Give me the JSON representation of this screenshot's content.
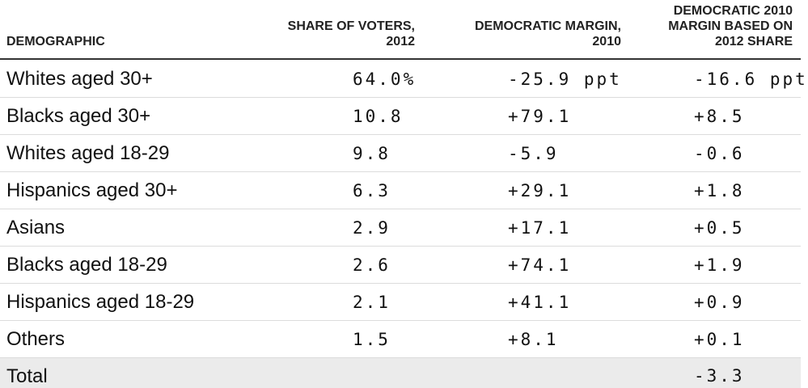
{
  "chart_data": {
    "type": "table",
    "columns": [
      "DEMOGRAPHIC",
      "SHARE OF VOTERS, 2012",
      "DEMOCRATIC MARGIN, 2010",
      "DEMOCRATIC 2010 MARGIN BASED ON 2012 SHARE"
    ],
    "header_lines": {
      "col0": [
        "DEMOGRAPHIC"
      ],
      "col1": [
        "SHARE OF VOTERS,",
        "2012"
      ],
      "col2": [
        "DEMOCRATIC MARGIN,",
        "2010"
      ],
      "col3": [
        "DEMOCRATIC 2010",
        "MARGIN BASED ON",
        "2012 SHARE"
      ]
    },
    "rows": [
      {
        "demographic": "Whites aged 30+",
        "share": "64.0%",
        "margin2010": "-25.9 ppt",
        "based": "-16.6 ppt"
      },
      {
        "demographic": "Blacks aged 30+",
        "share": "10.8",
        "margin2010": "+79.1",
        "based": "+8.5"
      },
      {
        "demographic": "Whites aged 18-29",
        "share": "9.8",
        "margin2010": "-5.9",
        "based": "-0.6"
      },
      {
        "demographic": "Hispanics aged 30+",
        "share": "6.3",
        "margin2010": "+29.1",
        "based": "+1.8"
      },
      {
        "demographic": "Asians",
        "share": "2.9",
        "margin2010": "+17.1",
        "based": "+0.5"
      },
      {
        "demographic": "Blacks aged 18-29",
        "share": "2.6",
        "margin2010": "+74.1",
        "based": "+1.9"
      },
      {
        "demographic": "Hispanics aged 18-29",
        "share": "2.1",
        "margin2010": "+41.1",
        "based": "+0.9"
      },
      {
        "demographic": "Others",
        "share": "1.5",
        "margin2010": "+8.1",
        "based": "+0.1"
      }
    ],
    "total": {
      "demographic": "Total",
      "share": "",
      "margin2010": "",
      "based": "-3.3"
    }
  },
  "colors": {
    "rule": "#333333",
    "row_divider": "#dcdcdc",
    "total_background": "#ebebeb"
  }
}
